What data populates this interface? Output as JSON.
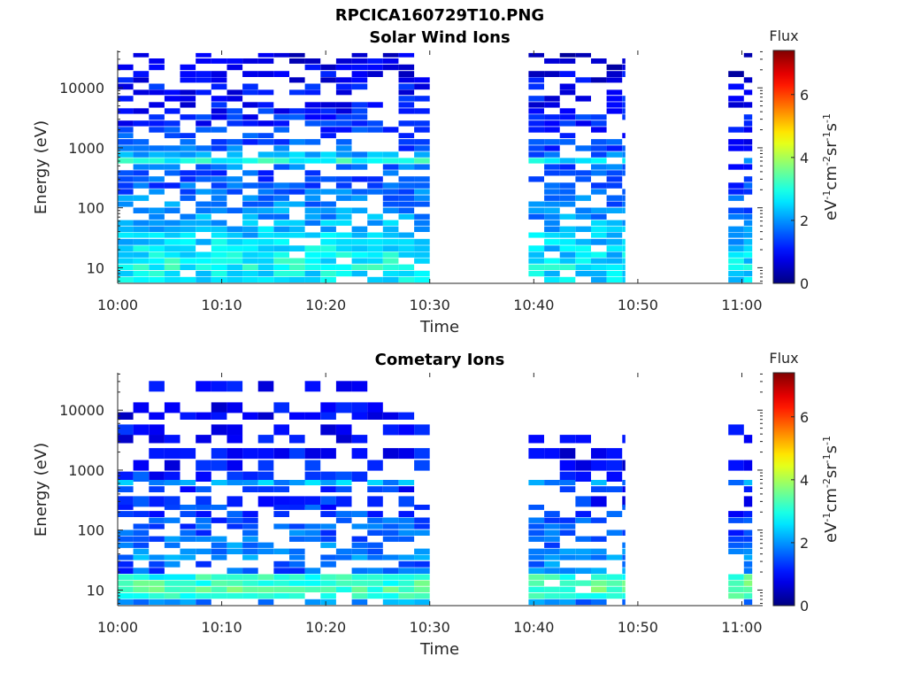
{
  "figure": {
    "title": "RPCICA160729T10.PNG"
  },
  "colormap": "jet",
  "chart_data": [
    {
      "type": "heatmap",
      "title": "Solar Wind Ions",
      "xlabel": "Time",
      "ylabel": "Energy (eV)",
      "x_ticks": [
        "10:00",
        "10:10",
        "10:20",
        "10:30",
        "10:40",
        "10:50",
        "11:00"
      ],
      "x_range_minutes": [
        0,
        62
      ],
      "y_scale": "log",
      "y_ticks": [
        "10",
        "100",
        "1000",
        "10000"
      ],
      "y_range": [
        5.5,
        42000
      ],
      "colorbar": {
        "label": "Flux",
        "unit_label": "eV-1cm-2sr-1s-1",
        "ticks": [
          "0",
          "2",
          "4",
          "6"
        ],
        "range": [
          0,
          7.4
        ]
      },
      "data_intervals_minutes": [
        [
          0,
          30
        ],
        [
          39.5,
          48.8
        ],
        [
          58.7,
          61
        ]
      ],
      "rows": [
        {
          "e": 35000,
          "v": [
            0.6,
            0.5,
            0.4
          ]
        },
        {
          "e": 28000,
          "v": [
            0.8,
            0.6,
            0.5
          ]
        },
        {
          "e": 22000,
          "v": [
            0.7,
            0.7,
            0.5
          ]
        },
        {
          "e": 17000,
          "v": [
            0.9,
            0.8,
            0.6
          ]
        },
        {
          "e": 13500,
          "v": [
            0.8,
            0.8,
            0.6
          ]
        },
        {
          "e": 10500,
          "v": [
            1.0,
            0.9,
            0.7
          ]
        },
        {
          "e": 8400,
          "v": [
            1.0,
            0.9,
            0.7
          ]
        },
        {
          "e": 6600,
          "v": [
            1.1,
            1.0,
            0.8
          ]
        },
        {
          "e": 5200,
          "v": [
            1.0,
            1.0,
            0.8
          ]
        },
        {
          "e": 4100,
          "v": [
            1.1,
            1.0,
            0.8
          ]
        },
        {
          "e": 3250,
          "v": [
            1.2,
            1.1,
            0.9
          ]
        },
        {
          "e": 2550,
          "v": [
            1.2,
            1.1,
            0.9
          ]
        },
        {
          "e": 2000,
          "v": [
            1.3,
            1.2,
            1.0
          ]
        },
        {
          "e": 1600,
          "v": [
            1.3,
            1.2,
            1.0
          ]
        },
        {
          "e": 1250,
          "v": [
            1.5,
            1.3,
            1.1
          ]
        },
        {
          "e": 980,
          "v": [
            1.6,
            1.4,
            1.2
          ]
        },
        {
          "e": 770,
          "v": [
            2.2,
            1.8,
            1.6
          ]
        },
        {
          "e": 610,
          "v": [
            3.0,
            2.6,
            2.2
          ]
        },
        {
          "e": 480,
          "v": [
            1.8,
            1.6,
            1.3
          ]
        },
        {
          "e": 380,
          "v": [
            1.5,
            1.4,
            1.2
          ]
        },
        {
          "e": 300,
          "v": [
            1.5,
            1.4,
            1.2
          ]
        },
        {
          "e": 235,
          "v": [
            1.6,
            1.5,
            1.3
          ]
        },
        {
          "e": 185,
          "v": [
            1.7,
            1.6,
            1.4
          ]
        },
        {
          "e": 145,
          "v": [
            1.8,
            1.7,
            1.5
          ]
        },
        {
          "e": 115,
          "v": [
            1.9,
            1.8,
            1.6
          ]
        },
        {
          "e": 90,
          "v": [
            2.0,
            1.9,
            1.7
          ]
        },
        {
          "e": 71,
          "v": [
            2.1,
            2.0,
            1.8
          ]
        },
        {
          "e": 56,
          "v": [
            2.2,
            2.1,
            1.9
          ]
        },
        {
          "e": 44,
          "v": [
            2.3,
            2.2,
            2.0
          ]
        },
        {
          "e": 35,
          "v": [
            2.4,
            2.3,
            2.1
          ]
        },
        {
          "e": 27,
          "v": [
            2.5,
            2.4,
            2.2
          ]
        },
        {
          "e": 21,
          "v": [
            2.6,
            2.4,
            2.3
          ]
        },
        {
          "e": 16.5,
          "v": [
            2.7,
            2.5,
            2.4
          ]
        },
        {
          "e": 13,
          "v": [
            2.8,
            2.6,
            2.5
          ]
        },
        {
          "e": 10.2,
          "v": [
            2.9,
            2.7,
            2.6
          ]
        },
        {
          "e": 8.0,
          "v": [
            2.7,
            2.6,
            2.5
          ]
        },
        {
          "e": 6.3,
          "v": [
            2.6,
            2.5,
            2.4
          ]
        }
      ]
    },
    {
      "type": "heatmap",
      "title": "Cometary Ions",
      "xlabel": "Time",
      "ylabel": "Energy (eV)",
      "x_ticks": [
        "10:00",
        "10:10",
        "10:20",
        "10:30",
        "10:40",
        "10:50",
        "11:00"
      ],
      "x_range_minutes": [
        0,
        62
      ],
      "y_scale": "log",
      "y_ticks": [
        "10",
        "100",
        "1000",
        "10000"
      ],
      "y_range": [
        5.5,
        42000
      ],
      "colorbar": {
        "label": "Flux",
        "unit_label": "eV-1cm-2sr-1s-1",
        "ticks": [
          "0",
          "2",
          "4",
          "6"
        ],
        "range": [
          0,
          7.4
        ]
      },
      "data_intervals_minutes": [
        [
          0,
          30
        ],
        [
          39.5,
          48.8
        ],
        [
          58.7,
          61
        ]
      ],
      "rows": [
        {
          "e": 25000,
          "v": [
            1.0,
            0.0,
            0.0
          ]
        },
        {
          "e": 11000,
          "v": [
            0.9,
            0.0,
            0.8
          ]
        },
        {
          "e": 8000,
          "v": [
            0.9,
            0.0,
            0.0
          ]
        },
        {
          "e": 4700,
          "v": [
            0.9,
            0.0,
            0.8
          ]
        },
        {
          "e": 3300,
          "v": [
            0.9,
            0.8,
            0.8
          ]
        },
        {
          "e": 1900,
          "v": [
            1.0,
            0.8,
            0.0
          ]
        },
        {
          "e": 1200,
          "v": [
            1.0,
            0.9,
            0.8
          ]
        },
        {
          "e": 780,
          "v": [
            1.2,
            1.0,
            0.9
          ]
        },
        {
          "e": 620,
          "v": [
            2.2,
            2.0,
            2.0
          ]
        },
        {
          "e": 480,
          "v": [
            1.2,
            1.1,
            1.0
          ]
        },
        {
          "e": 300,
          "v": [
            1.2,
            1.1,
            1.0
          ]
        },
        {
          "e": 240,
          "v": [
            1.3,
            1.2,
            1.1
          ]
        },
        {
          "e": 185,
          "v": [
            1.4,
            1.3,
            1.2
          ]
        },
        {
          "e": 145,
          "v": [
            1.5,
            1.4,
            1.3
          ]
        },
        {
          "e": 115,
          "v": [
            1.5,
            1.4,
            1.3
          ]
        },
        {
          "e": 90,
          "v": [
            1.6,
            1.5,
            1.4
          ]
        },
        {
          "e": 71,
          "v": [
            1.7,
            1.6,
            1.5
          ]
        },
        {
          "e": 56,
          "v": [
            1.8,
            1.7,
            1.6
          ]
        },
        {
          "e": 44,
          "v": [
            1.9,
            1.8,
            1.7
          ]
        },
        {
          "e": 35,
          "v": [
            2.0,
            1.9,
            1.8
          ]
        },
        {
          "e": 27,
          "v": [
            1.6,
            1.8,
            1.7
          ]
        },
        {
          "e": 21,
          "v": [
            1.5,
            1.9,
            1.9
          ]
        },
        {
          "e": 16.5,
          "v": [
            3.0,
            3.2,
            3.2
          ]
        },
        {
          "e": 13,
          "v": [
            3.2,
            3.3,
            3.3
          ]
        },
        {
          "e": 10.2,
          "v": [
            3.3,
            3.4,
            3.4
          ]
        },
        {
          "e": 8.0,
          "v": [
            3.0,
            3.1,
            3.1
          ]
        },
        {
          "e": 6.3,
          "v": [
            2.0,
            1.8,
            1.8
          ]
        }
      ]
    }
  ]
}
